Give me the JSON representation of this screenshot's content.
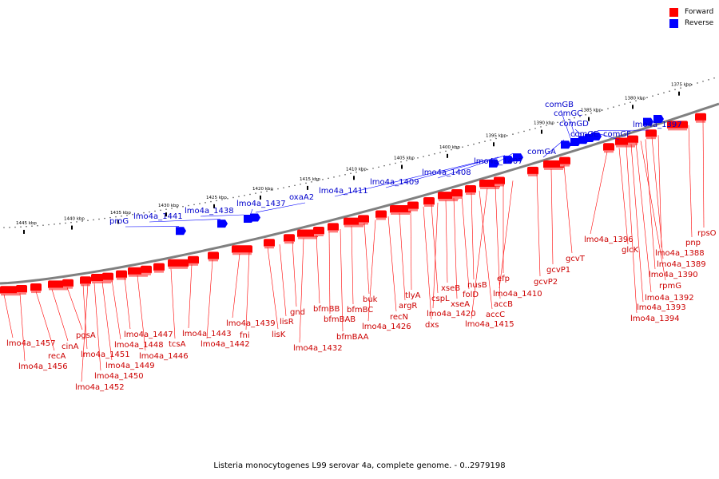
{
  "legend": [
    {
      "label": "Forward",
      "color": "#ff0000"
    },
    {
      "label": "Reverse",
      "color": "#0000ff"
    }
  ],
  "caption": "Listeria monocytogenes L99 serovar 4a, complete genome. - 0..2979198",
  "scale_labels": [
    "1445 kbp",
    "1440 kbp",
    "1435 kbp",
    "1430 kbp",
    "1425 kbp",
    "1420 kbp",
    "1415 kbp",
    "1410 kbp",
    "1405 kbp",
    "1400 kbp",
    "1395 kbp",
    "1390 kbp",
    "1385 kbp",
    "1380 kbp",
    "1375 kbp"
  ],
  "reverse_genes": [
    "proG",
    "lmo4a_1441",
    "lmo4a_1438",
    "lmo4a_1437",
    "oxaA2",
    "lmo4a_1411",
    "lmo4a_1409",
    "lmo4a_1408",
    "lmo4a_1407",
    "comGA",
    "comGB",
    "comGC",
    "comGD",
    "comGE",
    "comGF",
    "lmo4a_1397"
  ],
  "forward_genes": [
    "lmo4a_1457",
    "lmo4a_1456",
    "recA",
    "cinA",
    "pgsA",
    "lmo4a_1451",
    "lmo4a_1452",
    "lmo4a_1450",
    "lmo4a_1449",
    "lmo4a_1448",
    "lmo4a_1447",
    "lmo4a_1446",
    "tcsA",
    "lmo4a_1443",
    "lmo4a_1442",
    "lmo4a_1439",
    "fni",
    "lisK",
    "lisR",
    "gnd",
    "lmo4a_1432",
    "bfmBB",
    "bfmBAB",
    "bfmBAA",
    "bfmBC",
    "buk",
    "lmo4a_1426",
    "recN",
    "argR",
    "tlyA",
    "dxs",
    "cspL",
    "lmo4a_1420",
    "xseB",
    "xseA",
    "folD",
    "nusB",
    "accC",
    "lmo4a_1415",
    "accB",
    "efp",
    "lmo4a_1410",
    "gcvP2",
    "gcvP1",
    "gcvT",
    "lmo4a_1396",
    "glcK",
    "lmo4a_1394",
    "lmo4a_1393",
    "lmo4a_1392",
    "rpmG",
    "lmo4a_1390",
    "lmo4a_1389",
    "lmo4a_1388",
    "pnp",
    "rpsO"
  ],
  "colors": {
    "forward": "#ff0000",
    "reverse": "#0000ff",
    "backbone": "#808080",
    "forward_label": "#cc0000",
    "reverse_label": "#0000cc"
  }
}
